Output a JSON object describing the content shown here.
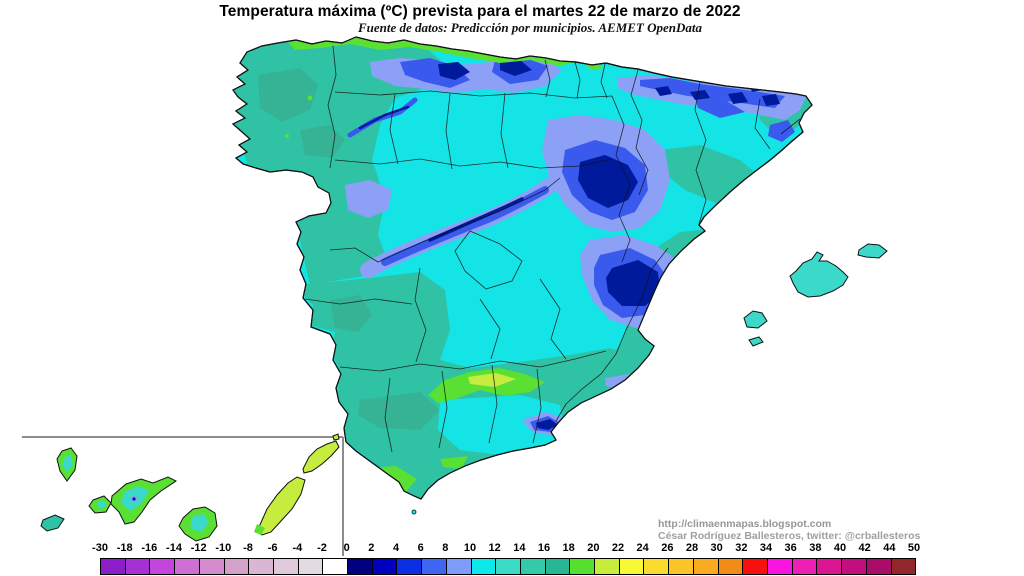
{
  "title": "Temperatura máxima (ºC) prevista para el martes 22 de marzo de 2022",
  "subtitle": "Fuente de datos: Predicción por municipios. AEMET OpenData",
  "attribution": {
    "line1": "http://climaenmapas.blogspot.com",
    "line2": "César Rodríguez Ballesteros, twitter: @crballesteros"
  },
  "legend": {
    "labels": [
      "-30",
      "-18",
      "-16",
      "-14",
      "-12",
      "-10",
      "-8",
      "-6",
      "-4",
      "-2",
      "0",
      "2",
      "4",
      "6",
      "8",
      "10",
      "12",
      "14",
      "16",
      "18",
      "20",
      "22",
      "24",
      "26",
      "28",
      "30",
      "32",
      "34",
      "36",
      "38",
      "40",
      "42",
      "44",
      "50"
    ],
    "cells": [
      "#8A1EC8",
      "#A431D2",
      "#C246DC",
      "#CE6FD4",
      "#D48CCE",
      "#D2A2C8",
      "#DAB6D2",
      "#DECADA",
      "#E2DCE2",
      "#FFFFFF",
      "#000080",
      "#0000C0",
      "#0D2FE4",
      "#3E66F2",
      "#7D9DF8",
      "#0FE8E8",
      "#3ADCC8",
      "#34C9A8",
      "#28B794",
      "#55DF2E",
      "#C6EC3C",
      "#F8F834",
      "#FBDB2D",
      "#FBC529",
      "#FAAC20",
      "#F18C18",
      "#F61110",
      "#F914E2",
      "#ED1FB4",
      "#DC1592",
      "#C20F7E",
      "#A90D69",
      "#93262B"
    ]
  },
  "map_colors": {
    "sea_white": "#FFFFFF",
    "cyan_10_12": "#14E4E6",
    "turquoise_12_14": "#3AD9C9",
    "teal_14_16": "#30C2A4",
    "dark_teal_16_18": "#36B294",
    "green_18_20": "#5ADF33",
    "yellow_green_20_22": "#C6EC40",
    "periwinkle_8_10": "#8CA1F6",
    "blue_4_8": "#3A5AEE",
    "navy_0_4": "#001A9C",
    "border_black": "#111111",
    "inset_gray": "#8C8C8C"
  }
}
